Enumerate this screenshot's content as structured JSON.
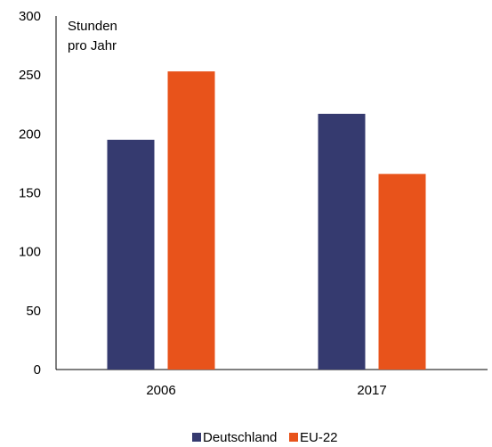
{
  "chart_data": {
    "type": "bar",
    "categories": [
      "2006",
      "2017"
    ],
    "series": [
      {
        "name": "Deutschland",
        "values": [
          195,
          217
        ],
        "color": "#353a6f"
      },
      {
        "name": "EU-22",
        "values": [
          253,
          166
        ],
        "color": "#e8531b"
      }
    ],
    "title": "",
    "xlabel": "",
    "ylabel": "Stunden pro Jahr",
    "ylabel_lines": [
      "Stunden",
      "pro Jahr"
    ],
    "ylim": [
      0,
      300
    ],
    "yticks": [
      0,
      50,
      100,
      150,
      200,
      250,
      300
    ],
    "grid": false,
    "legend_position": "bottom-center"
  }
}
